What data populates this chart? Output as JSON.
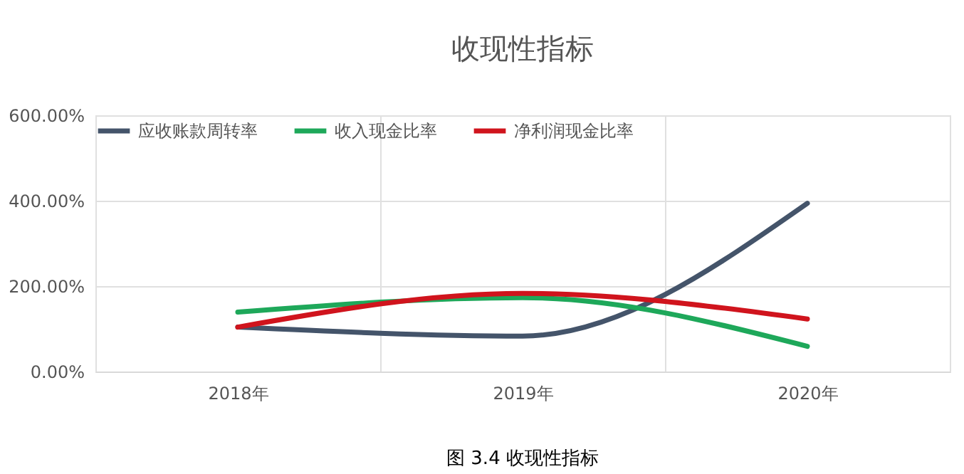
{
  "chart_data": {
    "type": "line",
    "title": "收现性指标",
    "categories": [
      "2018年",
      "2019年",
      "2020年"
    ],
    "series": [
      {
        "name": "应收账款周转率",
        "color": "#44546a",
        "values": [
          104,
          83,
          394
        ]
      },
      {
        "name": "收入现金比率",
        "color": "#1ea85a",
        "values": [
          139,
          173,
          59
        ]
      },
      {
        "name": "净利润现金比率",
        "color": "#d0141d",
        "values": [
          104,
          183,
          123
        ]
      }
    ],
    "ylim": [
      0,
      600
    ],
    "yticks": [
      {
        "value": 0,
        "label": "0.00%"
      },
      {
        "value": 200,
        "label": "200.00%"
      },
      {
        "value": 400,
        "label": "400.00%"
      },
      {
        "value": 600,
        "label": "600.00%"
      }
    ],
    "grid": true,
    "legend": "top",
    "marker": "none",
    "line_style": "solid",
    "annotations": [
      "图 3.4 收现性指标"
    ]
  }
}
